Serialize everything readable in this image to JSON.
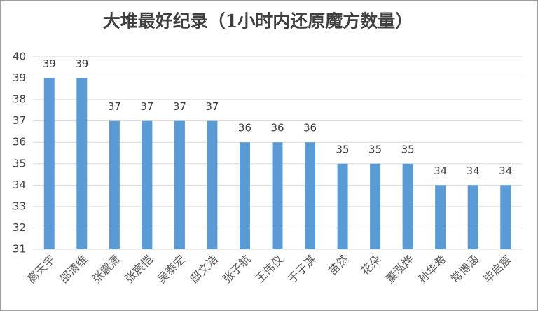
{
  "chart_data": {
    "type": "bar",
    "title": "大堆最好纪录（1小时内还原魔方数量）",
    "categories": [
      "高天宇",
      "邵清维",
      "张震潇",
      "张宸恺",
      "吴泰宏",
      "邸文浩",
      "张子航",
      "王伟仪",
      "于子淇",
      "苗然",
      "花朵",
      "董泓烨",
      "孙华希",
      "常博涵",
      "毕启宸"
    ],
    "values": [
      39,
      39,
      37,
      37,
      37,
      37,
      36,
      36,
      36,
      35,
      35,
      35,
      34,
      34,
      34
    ],
    "color": "#5b9bd5",
    "ylim": [
      31,
      40
    ],
    "yticks": [
      31,
      32,
      33,
      34,
      35,
      36,
      37,
      38,
      39,
      40
    ],
    "grid": true
  }
}
